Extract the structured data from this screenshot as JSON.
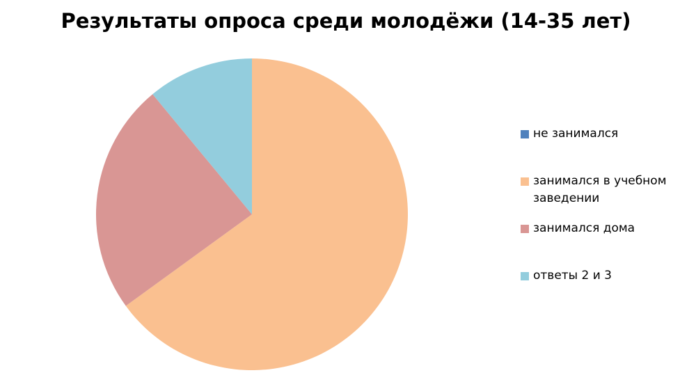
{
  "chart_data": {
    "type": "pie",
    "title": "Результаты опроса среди молодёжи (14-35 лет)",
    "categories": [
      "не занимался",
      "занимался в учебном заведении",
      "занимался дома",
      "ответы 2 и 3"
    ],
    "values": [
      0,
      65,
      24,
      11
    ],
    "colors": [
      "#4f81bd",
      "#fac090",
      "#d99694",
      "#93cddd"
    ],
    "legend": "right"
  }
}
